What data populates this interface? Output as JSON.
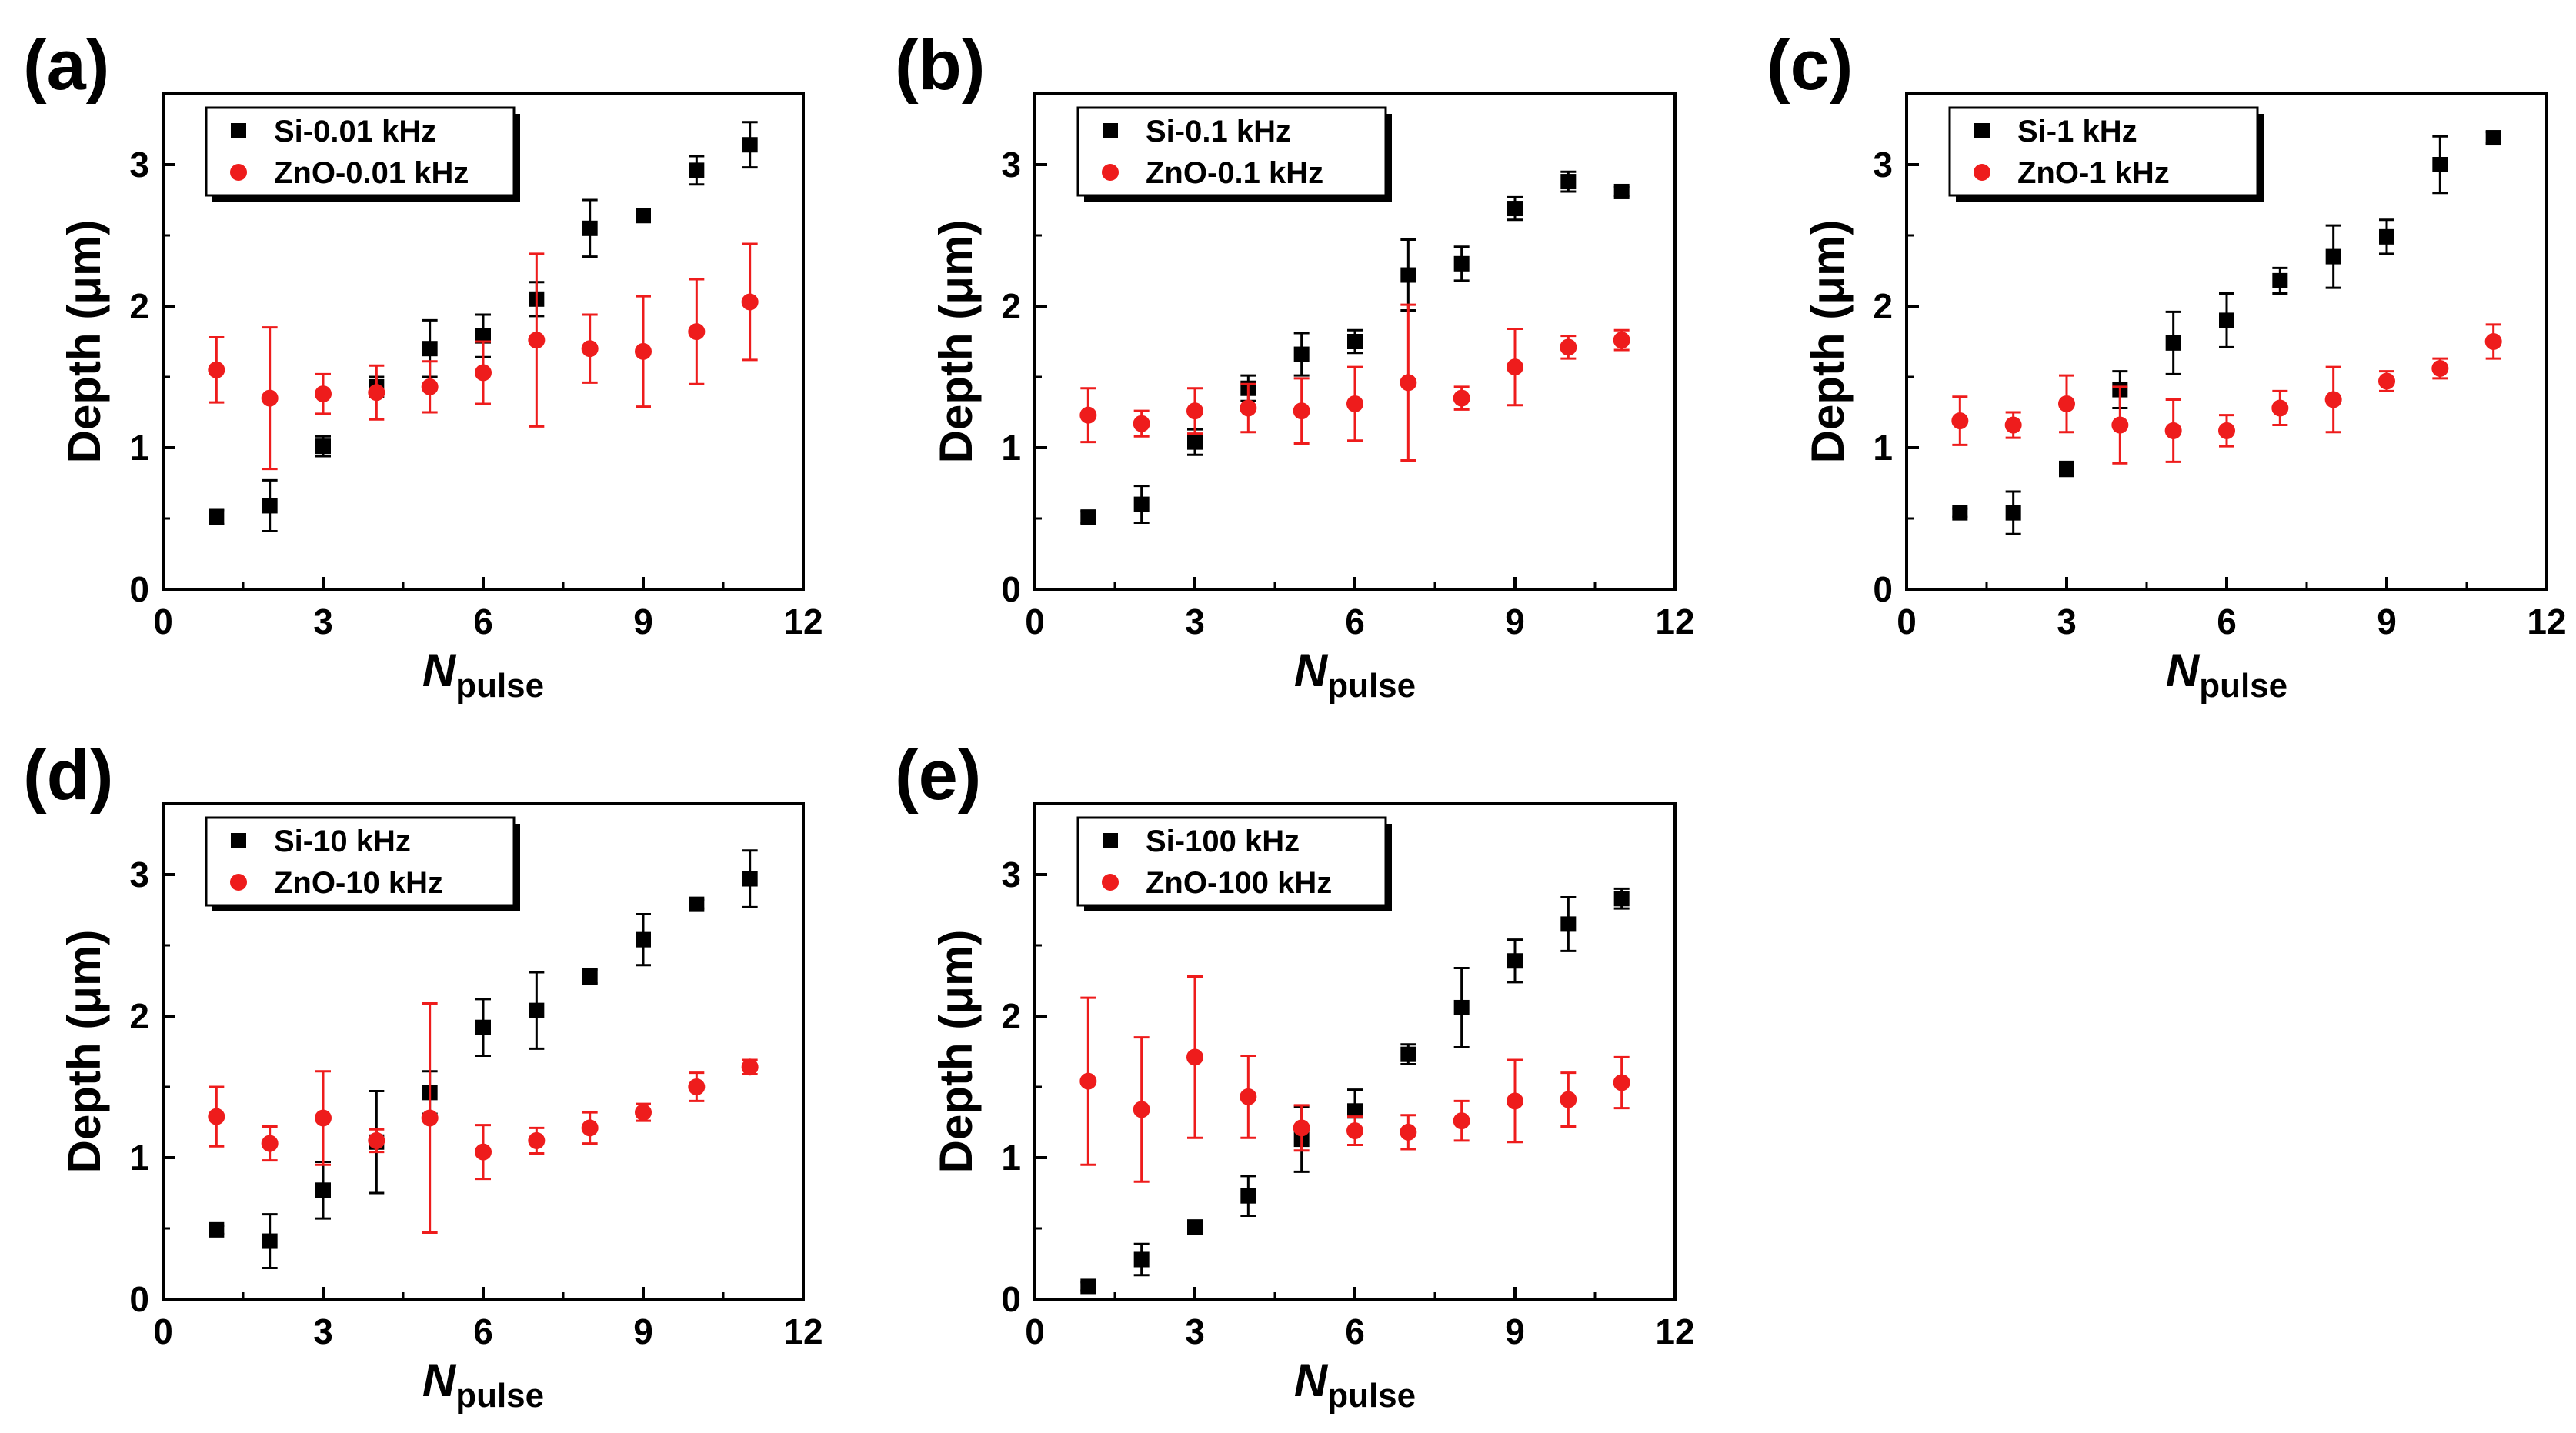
{
  "chart_data": [
    {
      "type": "scatter",
      "panel_label": "(a)",
      "xlabel": "N",
      "xlabel_sub": "pulse",
      "ylabel": "Depth (μm)",
      "xlim": [
        0,
        12
      ],
      "ylim": [
        0,
        3.5
      ],
      "xticks": [
        0,
        3,
        6,
        9,
        12
      ],
      "yticks": [
        0,
        1,
        2,
        3
      ],
      "legend_position": "top-left",
      "x": [
        1,
        2,
        3,
        4,
        5,
        6,
        7,
        8,
        9,
        10,
        11
      ],
      "series": [
        {
          "name": "Si-0.01 kHz",
          "marker": "square",
          "color": "#000000",
          "values": [
            0.51,
            0.59,
            1.01,
            1.43,
            1.7,
            1.79,
            2.05,
            2.55,
            2.64,
            2.96,
            3.14
          ],
          "errors": [
            0.05,
            0.18,
            0.07,
            0.07,
            0.2,
            0.15,
            0.12,
            0.2,
            0.04,
            0.1,
            0.16
          ]
        },
        {
          "name": "ZnO-0.01 kHz",
          "marker": "circle",
          "color": "#ee1c1c",
          "values": [
            1.55,
            1.35,
            1.38,
            1.39,
            1.43,
            1.53,
            1.76,
            1.7,
            1.68,
            1.82,
            2.03
          ],
          "errors": [
            0.23,
            0.5,
            0.14,
            0.19,
            0.18,
            0.22,
            0.61,
            0.24,
            0.39,
            0.37,
            0.41
          ]
        }
      ]
    },
    {
      "type": "scatter",
      "panel_label": "(b)",
      "xlabel": "N",
      "xlabel_sub": "pulse",
      "ylabel": "Depth (μm)",
      "xlim": [
        0,
        12
      ],
      "ylim": [
        0,
        3.5
      ],
      "xticks": [
        0,
        3,
        6,
        9,
        12
      ],
      "yticks": [
        0,
        1,
        2,
        3
      ],
      "legend_position": "top-left",
      "x": [
        1,
        2,
        3,
        4,
        5,
        6,
        7,
        8,
        9,
        10,
        11
      ],
      "series": [
        {
          "name": "Si-0.1 kHz",
          "marker": "square",
          "color": "#000000",
          "values": [
            0.51,
            0.6,
            1.04,
            1.42,
            1.66,
            1.75,
            2.22,
            2.3,
            2.69,
            2.88,
            2.81
          ],
          "errors": [
            0.04,
            0.13,
            0.09,
            0.09,
            0.15,
            0.08,
            0.25,
            0.12,
            0.08,
            0.07,
            0.03
          ]
        },
        {
          "name": "ZnO-0.1 kHz",
          "marker": "circle",
          "color": "#ee1c1c",
          "values": [
            1.23,
            1.17,
            1.26,
            1.28,
            1.26,
            1.31,
            1.46,
            1.35,
            1.57,
            1.71,
            1.76
          ],
          "errors": [
            0.19,
            0.09,
            0.16,
            0.17,
            0.23,
            0.26,
            0.55,
            0.08,
            0.27,
            0.08,
            0.07
          ]
        }
      ]
    },
    {
      "type": "scatter",
      "panel_label": "(c)",
      "xlabel": "N",
      "xlabel_sub": "pulse",
      "ylabel": "Depth (μm)",
      "xlim": [
        0,
        12
      ],
      "ylim": [
        0,
        3.5
      ],
      "xticks": [
        0,
        3,
        6,
        9,
        12
      ],
      "yticks": [
        0,
        1,
        2,
        3
      ],
      "legend_position": "top-left",
      "x": [
        1,
        2,
        3,
        4,
        5,
        6,
        7,
        8,
        9,
        10,
        11
      ],
      "series": [
        {
          "name": "Si-1 kHz",
          "marker": "square",
          "color": "#000000",
          "values": [
            0.54,
            0.54,
            0.85,
            1.41,
            1.74,
            1.9,
            2.18,
            2.35,
            2.49,
            3.0,
            3.19
          ],
          "errors": [
            0.03,
            0.15,
            0.05,
            0.13,
            0.22,
            0.19,
            0.09,
            0.22,
            0.12,
            0.2,
            0.04
          ]
        },
        {
          "name": "ZnO-1 kHz",
          "marker": "circle",
          "color": "#ee1c1c",
          "values": [
            1.19,
            1.16,
            1.31,
            1.16,
            1.12,
            1.12,
            1.28,
            1.34,
            1.47,
            1.56,
            1.75
          ],
          "errors": [
            0.17,
            0.09,
            0.2,
            0.27,
            0.22,
            0.11,
            0.12,
            0.23,
            0.07,
            0.07,
            0.12
          ]
        }
      ]
    },
    {
      "type": "scatter",
      "panel_label": "(d)",
      "xlabel": "N",
      "xlabel_sub": "pulse",
      "ylabel": "Depth (μm)",
      "xlim": [
        0,
        12
      ],
      "ylim": [
        0,
        3.5
      ],
      "xticks": [
        0,
        3,
        6,
        9,
        12
      ],
      "yticks": [
        0,
        1,
        2,
        3
      ],
      "legend_position": "top-left",
      "x": [
        1,
        2,
        3,
        4,
        5,
        6,
        7,
        8,
        9,
        10,
        11
      ],
      "series": [
        {
          "name": "Si-10 kHz",
          "marker": "square",
          "color": "#000000",
          "values": [
            0.49,
            0.41,
            0.77,
            1.11,
            1.46,
            1.92,
            2.04,
            2.28,
            2.54,
            2.79,
            2.97
          ],
          "errors": [
            0.03,
            0.19,
            0.2,
            0.36,
            0.15,
            0.2,
            0.27,
            0.05,
            0.18,
            0.03,
            0.2
          ]
        },
        {
          "name": "ZnO-10 kHz",
          "marker": "circle",
          "color": "#ee1c1c",
          "values": [
            1.29,
            1.1,
            1.28,
            1.12,
            1.28,
            1.04,
            1.12,
            1.21,
            1.32,
            1.5,
            1.64
          ],
          "errors": [
            0.21,
            0.12,
            0.33,
            0.08,
            0.81,
            0.19,
            0.09,
            0.11,
            0.06,
            0.1,
            0.05
          ]
        }
      ]
    },
    {
      "type": "scatter",
      "panel_label": "(e)",
      "xlabel": "N",
      "xlabel_sub": "pulse",
      "ylabel": "Depth (μm)",
      "xlim": [
        0,
        12
      ],
      "ylim": [
        0,
        3.5
      ],
      "xticks": [
        0,
        3,
        6,
        9,
        12
      ],
      "yticks": [
        0,
        1,
        2,
        3
      ],
      "legend_position": "top-left",
      "x": [
        1,
        2,
        3,
        4,
        5,
        6,
        7,
        8,
        9,
        10,
        11
      ],
      "series": [
        {
          "name": "Si-100 kHz",
          "marker": "square",
          "color": "#000000",
          "values": [
            0.09,
            0.28,
            0.51,
            0.73,
            1.13,
            1.33,
            1.73,
            2.06,
            2.39,
            2.65,
            2.83
          ],
          "errors": [
            0.03,
            0.11,
            0.04,
            0.14,
            0.23,
            0.15,
            0.07,
            0.28,
            0.15,
            0.19,
            0.07
          ]
        },
        {
          "name": "ZnO-100 kHz",
          "marker": "circle",
          "color": "#ee1c1c",
          "values": [
            1.54,
            1.34,
            1.71,
            1.43,
            1.21,
            1.19,
            1.18,
            1.26,
            1.4,
            1.41,
            1.53
          ],
          "errors": [
            0.59,
            0.51,
            0.57,
            0.29,
            0.16,
            0.1,
            0.12,
            0.14,
            0.29,
            0.19,
            0.18
          ]
        }
      ]
    }
  ]
}
